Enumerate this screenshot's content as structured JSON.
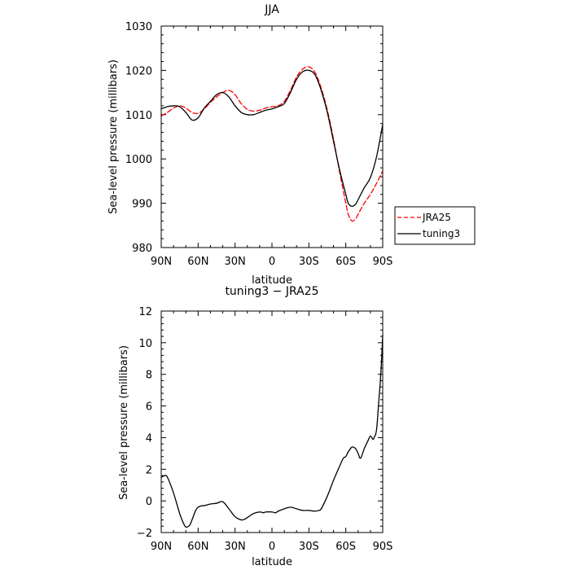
{
  "chart_data": [
    {
      "type": "line",
      "title": "JJA",
      "xlabel": "latitude",
      "ylabel": "Sea-level pressure (millibars)",
      "ylim": [
        980,
        1030
      ],
      "xlim": [
        90,
        -90
      ],
      "x_ticks": [
        90,
        60,
        30,
        0,
        -30,
        -60,
        -90
      ],
      "x_tick_labels": [
        "90N",
        "60N",
        "30N",
        "0",
        "30S",
        "60S",
        "90S"
      ],
      "y_ticks": [
        980,
        990,
        1000,
        1010,
        1020,
        1030
      ],
      "y_tick_labels": [
        "980",
        "990",
        "1000",
        "1010",
        "1020",
        "1030"
      ],
      "grid": false,
      "legend_position": "right-outside",
      "series": [
        {
          "name": "JRA25",
          "color": "#ff0000",
          "dash": "dashed",
          "x": [
            90,
            85,
            80,
            75,
            70,
            65,
            60,
            55,
            50,
            45,
            40,
            35,
            30,
            25,
            20,
            15,
            10,
            5,
            0,
            -5,
            -10,
            -15,
            -20,
            -25,
            -30,
            -35,
            -40,
            -45,
            -50,
            -55,
            -60,
            -62,
            -65,
            -68,
            -70,
            -75,
            -80,
            -85,
            -90
          ],
          "values": [
            1009.7,
            1010.5,
            1011.5,
            1012,
            1011.5,
            1010.5,
            1010.3,
            1011.3,
            1012.8,
            1014,
            1015,
            1015.5,
            1014.5,
            1012.5,
            1011.2,
            1010.8,
            1011,
            1011.5,
            1011.8,
            1012,
            1013,
            1015.5,
            1018.5,
            1020.3,
            1020.8,
            1019.5,
            1016,
            1011,
            1004.5,
            997,
            990,
            987.5,
            986,
            986.5,
            987.5,
            990,
            992,
            994.5,
            997.3
          ]
        },
        {
          "name": "tuning3",
          "color": "#000000",
          "dash": "solid",
          "x": [
            90,
            85,
            80,
            75,
            70,
            65,
            60,
            55,
            50,
            45,
            40,
            35,
            30,
            25,
            20,
            15,
            10,
            5,
            0,
            -5,
            -10,
            -15,
            -20,
            -25,
            -30,
            -35,
            -40,
            -45,
            -50,
            -55,
            -60,
            -62,
            -65,
            -68,
            -70,
            -75,
            -80,
            -85,
            -90
          ],
          "values": [
            1011.3,
            1011.8,
            1012,
            1011.8,
            1010.5,
            1008.8,
            1009.3,
            1011.5,
            1013,
            1014.5,
            1015,
            1014,
            1012,
            1010.5,
            1010,
            1010,
            1010.5,
            1011,
            1011.3,
            1011.8,
            1012.5,
            1015,
            1018,
            1019.7,
            1020,
            1019,
            1015.5,
            1010.5,
            1004,
            997.5,
            992,
            990,
            989.3,
            989.8,
            990.8,
            993.5,
            995.8,
            1000.5,
            1007.8
          ]
        }
      ]
    },
    {
      "type": "line",
      "title": "tuning3 − JRA25",
      "xlabel": "latitude",
      "ylabel": "Sea-level pressure (millibars)",
      "ylim": [
        -2,
        12
      ],
      "xlim": [
        90,
        -90
      ],
      "x_ticks": [
        90,
        60,
        30,
        0,
        -30,
        -60,
        -90
      ],
      "x_tick_labels": [
        "90N",
        "60N",
        "30N",
        "0",
        "30S",
        "60S",
        "90S"
      ],
      "y_ticks": [
        -2,
        0,
        2,
        4,
        6,
        8,
        10,
        12
      ],
      "y_tick_labels": [
        "−2",
        "0",
        "2",
        "4",
        "6",
        "8",
        "10",
        "12"
      ],
      "grid": false,
      "series": [
        {
          "color": "#000000",
          "dash": "solid",
          "x": [
            90,
            87,
            85,
            80,
            75,
            72,
            70,
            67,
            65,
            62,
            60,
            57,
            55,
            50,
            45,
            40,
            35,
            30,
            25,
            22,
            20,
            15,
            10,
            7,
            5,
            0,
            -3,
            -5,
            -10,
            -15,
            -20,
            -25,
            -30,
            -35,
            -38,
            -40,
            -45,
            -50,
            -55,
            -58,
            -60,
            -62,
            -65,
            -68,
            -70,
            -72,
            -75,
            -78,
            -80,
            -82,
            -83,
            -85,
            -87,
            -88,
            -89,
            -90
          ],
          "values": [
            1.5,
            1.6,
            1.5,
            0.5,
            -0.8,
            -1.4,
            -1.65,
            -1.55,
            -1.2,
            -0.6,
            -0.4,
            -0.3,
            -0.3,
            -0.2,
            -0.15,
            -0.05,
            -0.5,
            -1.0,
            -1.2,
            -1.15,
            -1.05,
            -0.8,
            -0.7,
            -0.75,
            -0.7,
            -0.7,
            -0.75,
            -0.65,
            -0.5,
            -0.4,
            -0.5,
            -0.6,
            -0.6,
            -0.65,
            -0.6,
            -0.5,
            0.3,
            1.3,
            2.2,
            2.7,
            2.8,
            3.1,
            3.4,
            3.3,
            3.0,
            2.7,
            3.3,
            3.8,
            4.1,
            3.9,
            4.0,
            4.5,
            6.5,
            7.5,
            8.8,
            10.5
          ]
        }
      ]
    }
  ]
}
